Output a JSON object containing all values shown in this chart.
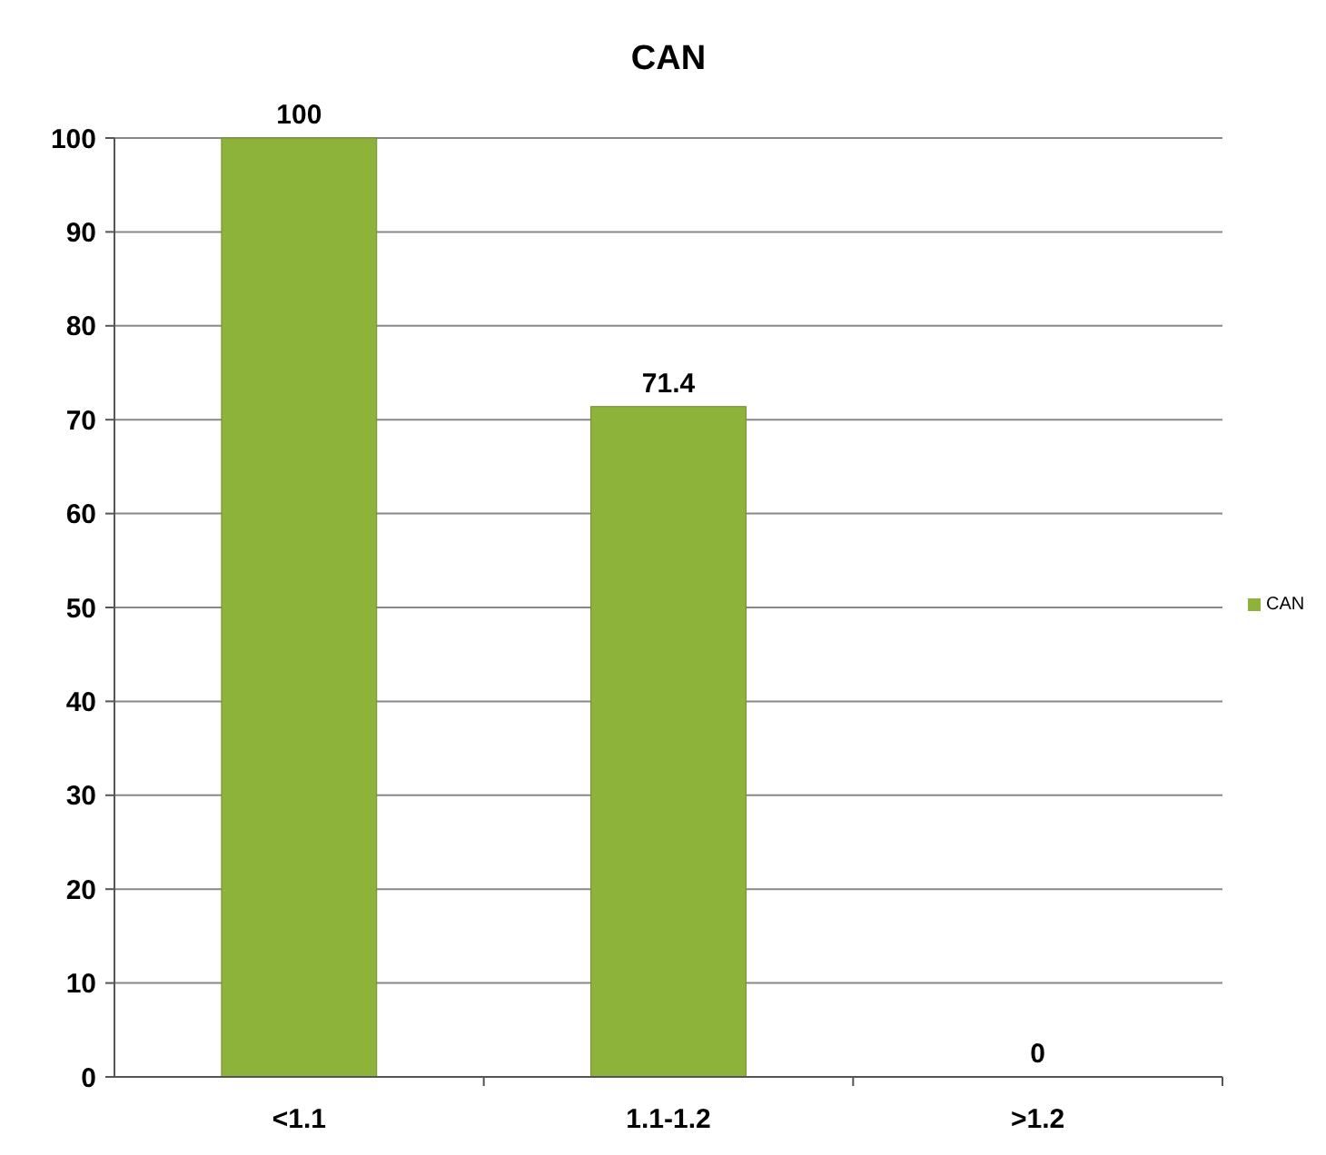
{
  "chart_data": {
    "type": "bar",
    "title": "CAN",
    "categories": [
      "<1.1",
      "1.1-1.2",
      ">1.2"
    ],
    "series": [
      {
        "name": "CAN",
        "color": "#8db33a",
        "values": [
          100,
          71.4,
          0
        ]
      }
    ],
    "ylim": [
      0,
      100
    ],
    "yticks": [
      0,
      10,
      20,
      30,
      40,
      50,
      60,
      70,
      80,
      90,
      100
    ],
    "grid": "y",
    "legend": "right",
    "data_labels": true
  }
}
